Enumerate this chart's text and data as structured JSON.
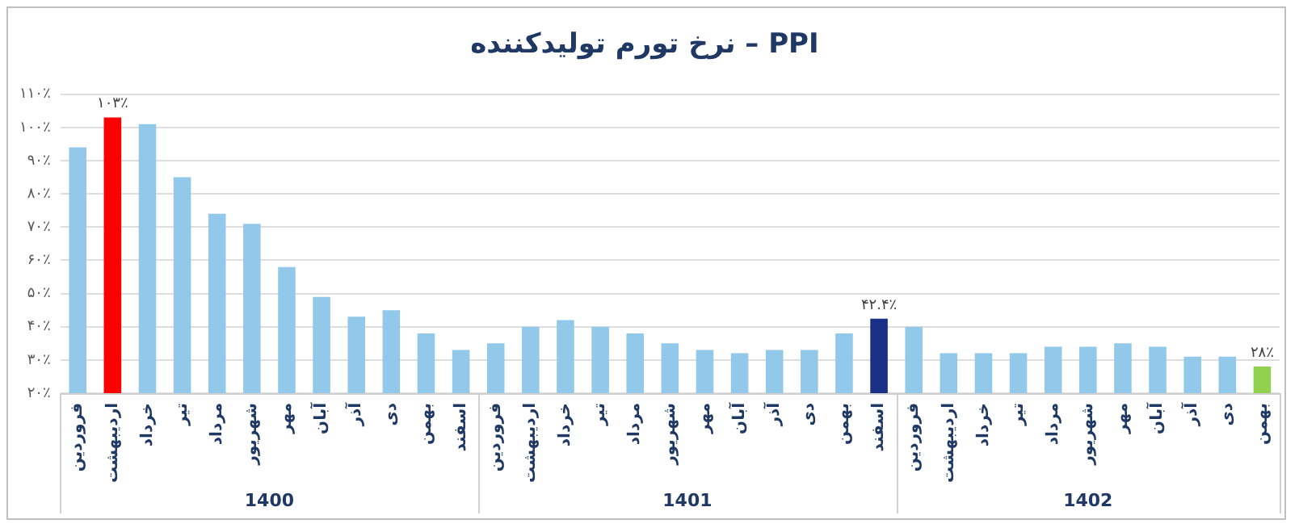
{
  "chart_data": {
    "type": "bar",
    "title": "نرخ تورم تولیدکننده – PPI",
    "categories": [
      "فروردین",
      "اردیبهشت",
      "خرداد",
      "تیر",
      "مرداد",
      "شهریور",
      "مهر",
      "آبان",
      "آذر",
      "دی",
      "بهمن",
      "اسفند",
      "فروردین",
      "اردیبهشت",
      "خرداد",
      "تیر",
      "مرداد",
      "شهریور",
      "مهر",
      "آبان",
      "آذر",
      "دی",
      "بهمن",
      "اسفند",
      "فروردین",
      "اردیبهشت",
      "خرداد",
      "تیر",
      "مرداد",
      "شهریور",
      "مهر",
      "آبان",
      "آذر",
      "دی",
      "بهمن"
    ],
    "values": [
      94,
      103,
      101,
      85,
      74,
      71,
      58,
      49,
      43,
      45,
      38,
      33,
      35,
      40,
      42,
      40,
      38,
      35,
      33,
      32,
      33,
      33,
      38,
      42.4,
      40,
      32,
      32,
      32,
      34,
      34,
      35,
      34,
      31,
      31,
      28
    ],
    "colors": [
      "#92c9ea",
      "#ff0000",
      "#92c9ea",
      "#92c9ea",
      "#92c9ea",
      "#92c9ea",
      "#92c9ea",
      "#92c9ea",
      "#92c9ea",
      "#92c9ea",
      "#92c9ea",
      "#92c9ea",
      "#92c9ea",
      "#92c9ea",
      "#92c9ea",
      "#92c9ea",
      "#92c9ea",
      "#92c9ea",
      "#92c9ea",
      "#92c9ea",
      "#92c9ea",
      "#92c9ea",
      "#92c9ea",
      "#1a2f86",
      "#92c9ea",
      "#92c9ea",
      "#92c9ea",
      "#92c9ea",
      "#92c9ea",
      "#92c9ea",
      "#92c9ea",
      "#92c9ea",
      "#92c9ea",
      "#92c9ea",
      "#92d050"
    ],
    "value_labels": [
      null,
      "۱۰۳٪",
      null,
      null,
      null,
      null,
      null,
      null,
      null,
      null,
      null,
      null,
      null,
      null,
      null,
      null,
      null,
      null,
      null,
      null,
      null,
      null,
      null,
      "۴۲.۴٪",
      null,
      null,
      null,
      null,
      null,
      null,
      null,
      null,
      null,
      null,
      "۲۸٪"
    ],
    "ylim": [
      20,
      110
    ],
    "yticks": [
      {
        "value": 20,
        "label": "۲۰٪"
      },
      {
        "value": 30,
        "label": "۳۰٪"
      },
      {
        "value": 40,
        "label": "۴۰٪"
      },
      {
        "value": 50,
        "label": "۵۰٪"
      },
      {
        "value": 60,
        "label": "۶۰٪"
      },
      {
        "value": 70,
        "label": "۷۰٪"
      },
      {
        "value": 80,
        "label": "۸۰٪"
      },
      {
        "value": 90,
        "label": "۹۰٪"
      },
      {
        "value": 100,
        "label": "۱۰۰٪"
      },
      {
        "value": 110,
        "label": "۱۱۰٪"
      }
    ],
    "grid": "y",
    "annotations": [
      "1400",
      "1401",
      "1402"
    ]
  }
}
